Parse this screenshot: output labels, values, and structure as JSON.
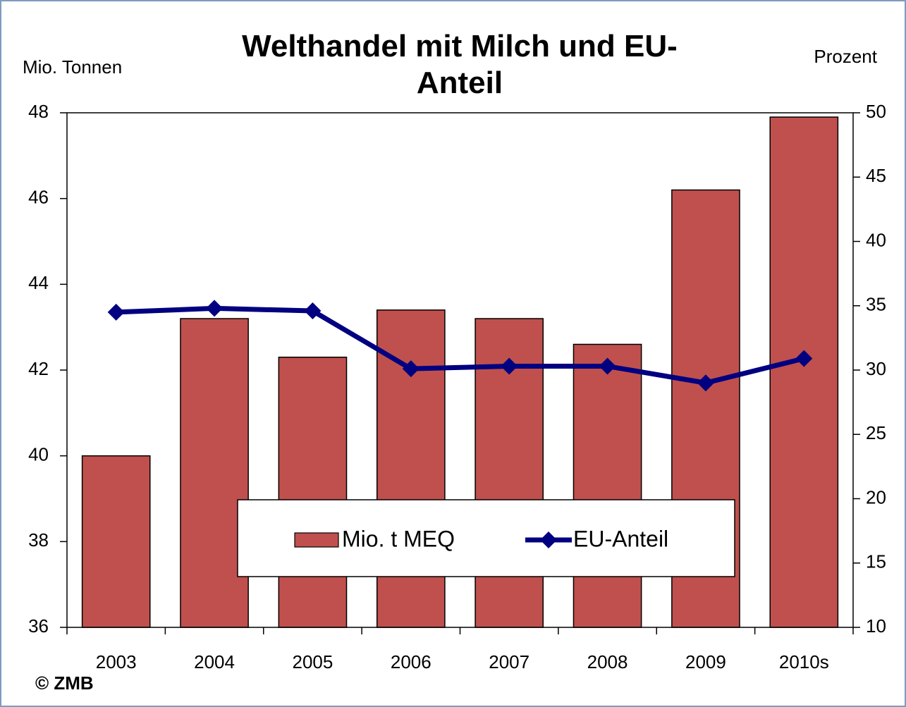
{
  "chart_data": {
    "type": "bar_line",
    "title": "Welthandel mit Milch und EU-Anteil",
    "y_label": "Mio. Tonnen",
    "y2_label": "Prozent",
    "source": "© ZMB",
    "categories": [
      "2003",
      "2004",
      "2005",
      "2006",
      "2007",
      "2008",
      "2009",
      "2010s"
    ],
    "series": [
      {
        "name": "Mio. t MEQ",
        "type": "bar",
        "color": "#c0504d",
        "values": [
          40.0,
          43.2,
          42.3,
          43.4,
          43.2,
          42.6,
          46.2,
          47.9
        ]
      },
      {
        "name": "EU-Anteil",
        "type": "line",
        "axis": "y2",
        "color": "#000080",
        "values": [
          34.5,
          34.8,
          34.6,
          30.1,
          30.3,
          30.3,
          29.0,
          30.9
        ]
      }
    ],
    "ylim": [
      36,
      48
    ],
    "yticks": [
      36,
      38,
      40,
      42,
      44,
      46,
      48
    ],
    "y2lim": [
      10,
      50
    ],
    "y2ticks": [
      10,
      15,
      20,
      25,
      30,
      35,
      40,
      45,
      50
    ],
    "grid": false,
    "legend": "bottom-center"
  }
}
